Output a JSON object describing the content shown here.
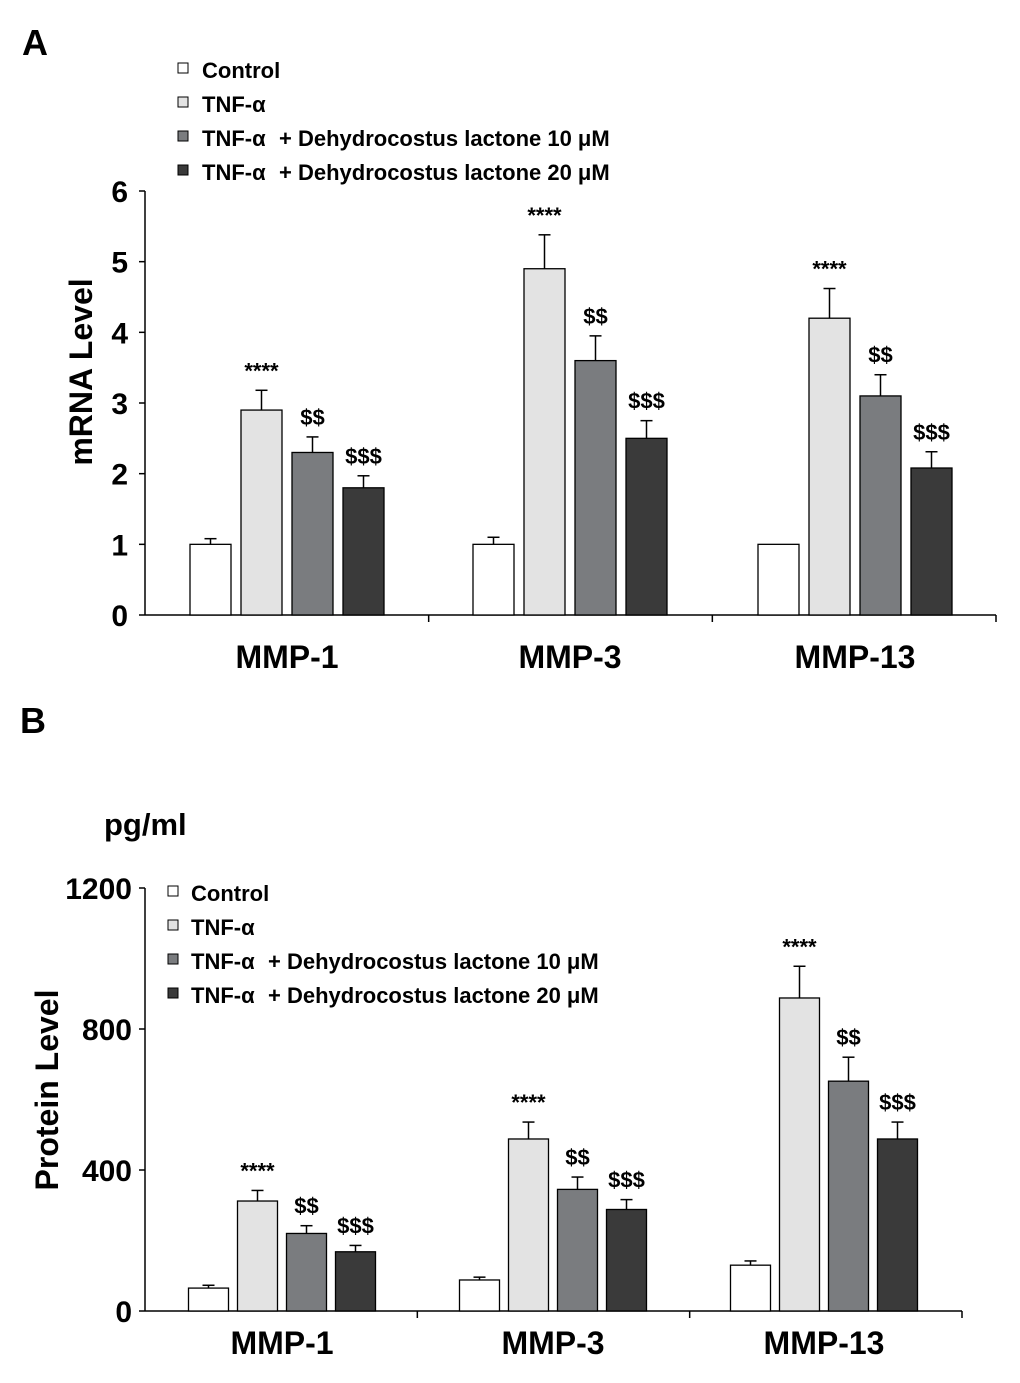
{
  "colors": {
    "Control": "#ffffff",
    "TNF-α": "#e3e3e3",
    "TNF-α + Dehydrocostus lactone 10 μM": "#7a7c7f",
    "TNF-α + Dehydrocostus lactone 20 μM": "#3a3a3a",
    "axis": "#000000"
  },
  "chart_data": [
    {
      "panel_label": "A",
      "type": "bar",
      "title": "",
      "xlabel": "",
      "ylabel": "mRNA Level",
      "unit_label": "",
      "ylim": [
        0,
        6
      ],
      "yticks": [
        0,
        1,
        2,
        3,
        4,
        5,
        6
      ],
      "categories": [
        "MMP-1",
        "MMP-3",
        "MMP-13"
      ],
      "legend_position": "top-left",
      "grid": false,
      "series": [
        {
          "name": "Control",
          "legend_part1": "Control",
          "legend_part2": "",
          "values": [
            1.0,
            1.0,
            1.0
          ],
          "errors": [
            0.08,
            0.1,
            0.0
          ],
          "annotations": [
            "",
            "",
            ""
          ]
        },
        {
          "name": "TNF-α",
          "legend_part1": "TNF-α",
          "legend_part2": "",
          "values": [
            2.9,
            4.9,
            4.2
          ],
          "errors": [
            0.28,
            0.48,
            0.42
          ],
          "annotations": [
            "****",
            "****",
            "****"
          ]
        },
        {
          "name": "TNF-α + Dehydrocostus lactone 10 μM",
          "legend_part1": "TNF-α",
          "legend_part2": "+ Dehydrocostus lactone 10 μM",
          "values": [
            2.3,
            3.6,
            3.1
          ],
          "errors": [
            0.22,
            0.35,
            0.3
          ],
          "annotations": [
            "$$",
            "$$",
            "$$"
          ]
        },
        {
          "name": "TNF-α + Dehydrocostus lactone 20 μM",
          "legend_part1": "TNF-α",
          "legend_part2": "+ Dehydrocostus lactone 20 μM",
          "values": [
            1.8,
            2.5,
            2.08
          ],
          "errors": [
            0.17,
            0.25,
            0.23
          ],
          "annotations": [
            "$$$",
            "$$$",
            "$$$"
          ]
        }
      ]
    },
    {
      "panel_label": "B",
      "type": "bar",
      "title": "",
      "xlabel": "",
      "ylabel": "Protein Level",
      "unit_label": "pg/ml",
      "ylim": [
        0,
        1200
      ],
      "yticks": [
        0,
        400,
        800,
        1200
      ],
      "categories": [
        "MMP-1",
        "MMP-3",
        "MMP-13"
      ],
      "legend_position": "top-left",
      "grid": false,
      "series": [
        {
          "name": "Control",
          "legend_part1": "Control",
          "legend_part2": "",
          "values": [
            65,
            88,
            130
          ],
          "errors": [
            8,
            8,
            12
          ],
          "annotations": [
            "",
            "",
            ""
          ]
        },
        {
          "name": "TNF-α",
          "legend_part1": "TNF-α",
          "legend_part2": "",
          "values": [
            312,
            488,
            888
          ],
          "errors": [
            30,
            48,
            90
          ],
          "annotations": [
            "****",
            "****",
            "****"
          ]
        },
        {
          "name": "TNF-α + Dehydrocostus lactone 10 μM",
          "legend_part1": "TNF-α",
          "legend_part2": "+ Dehydrocostus lactone 10 μM",
          "values": [
            220,
            345,
            652
          ],
          "errors": [
            22,
            35,
            68
          ],
          "annotations": [
            "$$",
            "$$",
            "$$"
          ]
        },
        {
          "name": "TNF-α + Dehydrocostus lactone 20 μM",
          "legend_part1": "TNF-α",
          "legend_part2": "+ Dehydrocostus lactone 20 μM",
          "values": [
            168,
            288,
            488
          ],
          "errors": [
            18,
            28,
            48
          ],
          "annotations": [
            "$$$",
            "$$$",
            "$$$"
          ]
        }
      ]
    }
  ]
}
